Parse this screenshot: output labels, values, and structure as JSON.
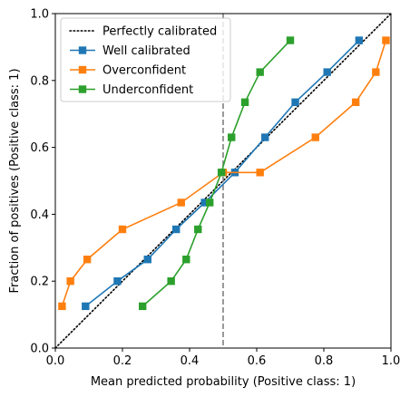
{
  "chart_data": {
    "type": "line",
    "title": "",
    "xlabel": "Mean predicted probability (Positive class: 1)",
    "ylabel": "Fraction of positives (Positive class: 1)",
    "xlim": [
      0,
      1
    ],
    "ylim": [
      0,
      1
    ],
    "x_ticks": [
      "0.0",
      "0.2",
      "0.4",
      "0.6",
      "0.8",
      "1.0"
    ],
    "y_ticks": [
      "0.0",
      "0.2",
      "0.4",
      "0.6",
      "0.8",
      "1.0"
    ],
    "grid": false,
    "legend_position": "top-left",
    "reference_line": {
      "name": "Perfectly calibrated",
      "style": "dotted",
      "color": "#000000",
      "x": [
        0,
        1
      ],
      "y": [
        0,
        1
      ]
    },
    "vertical_line": {
      "x": 0.5,
      "style": "dashed",
      "color": "#808080"
    },
    "series": [
      {
        "name": "Well calibrated",
        "color": "#1f77b4",
        "marker": "square",
        "x": [
          0.09,
          0.185,
          0.275,
          0.36,
          0.445,
          0.535,
          0.625,
          0.715,
          0.81,
          0.905
        ],
        "y": [
          0.125,
          0.2,
          0.265,
          0.355,
          0.435,
          0.525,
          0.63,
          0.735,
          0.825,
          0.92
        ]
      },
      {
        "name": "Overconfident",
        "color": "#ff7f0e",
        "marker": "square",
        "x": [
          0.02,
          0.045,
          0.095,
          0.2,
          0.375,
          0.5,
          0.61,
          0.775,
          0.895,
          0.955,
          0.985
        ],
        "y": [
          0.125,
          0.2,
          0.265,
          0.355,
          0.435,
          0.525,
          0.525,
          0.63,
          0.735,
          0.825,
          0.92
        ]
      },
      {
        "name": "Underconfident",
        "color": "#2ca02c",
        "marker": "square",
        "x": [
          0.26,
          0.345,
          0.39,
          0.425,
          0.46,
          0.495,
          0.525,
          0.565,
          0.61,
          0.7
        ],
        "y": [
          0.125,
          0.2,
          0.265,
          0.355,
          0.435,
          0.525,
          0.63,
          0.735,
          0.825,
          0.92
        ]
      }
    ]
  }
}
